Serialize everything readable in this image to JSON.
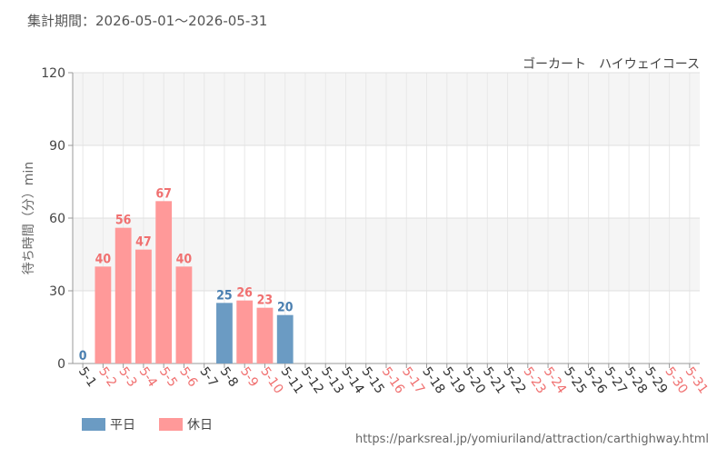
{
  "chart_data": {
    "type": "bar",
    "subtitle": "集計期間：2026-05-01～2026-05-31",
    "title": "ゴーカート　ハイウェイコース",
    "y_label": "待ち時間（分）min",
    "source": "https://parksreal.jp/yomiuriland/attraction/carthighway.html",
    "categories": [
      "5-1",
      "5-2",
      "5-3",
      "5-4",
      "5-5",
      "5-6",
      "5-7",
      "5-8",
      "5-9",
      "5-10",
      "5-11",
      "5-12",
      "5-13",
      "5-14",
      "5-15",
      "5-16",
      "5-17",
      "5-18",
      "5-19",
      "5-20",
      "5-21",
      "5-22",
      "5-23",
      "5-24",
      "5-25",
      "5-26",
      "5-27",
      "5-28",
      "5-29",
      "5-30",
      "5-31"
    ],
    "category_colors": [
      "#333333",
      "#f07070",
      "#f07070",
      "#f07070",
      "#f07070",
      "#f07070",
      "#333333",
      "#333333",
      "#f07070",
      "#f07070",
      "#333333",
      "#333333",
      "#333333",
      "#333333",
      "#333333",
      "#f07070",
      "#f07070",
      "#333333",
      "#333333",
      "#333333",
      "#333333",
      "#333333",
      "#f07070",
      "#f07070",
      "#333333",
      "#333333",
      "#333333",
      "#333333",
      "#333333",
      "#f07070",
      "#f07070"
    ],
    "series": [
      {
        "name": "平日",
        "color": "#6b9bc3",
        "label_color": "#4a7fb0",
        "values": [
          0,
          null,
          null,
          null,
          null,
          null,
          null,
          25,
          null,
          null,
          20,
          null,
          null,
          null,
          null,
          null,
          null,
          null,
          null,
          null,
          null,
          null,
          null,
          null,
          null,
          null,
          null,
          null,
          null,
          null,
          null
        ]
      },
      {
        "name": "休日",
        "color": "#ff9999",
        "label_color": "#f07070",
        "values": [
          null,
          40,
          56,
          47,
          67,
          40,
          null,
          null,
          26,
          23,
          null,
          null,
          null,
          null,
          null,
          null,
          null,
          null,
          null,
          null,
          null,
          null,
          null,
          null,
          null,
          null,
          null,
          null,
          null,
          null,
          null
        ]
      }
    ],
    "ylim": [
      0,
      120
    ],
    "yticks": [
      0,
      30,
      60,
      90,
      120
    ],
    "grid": true
  }
}
